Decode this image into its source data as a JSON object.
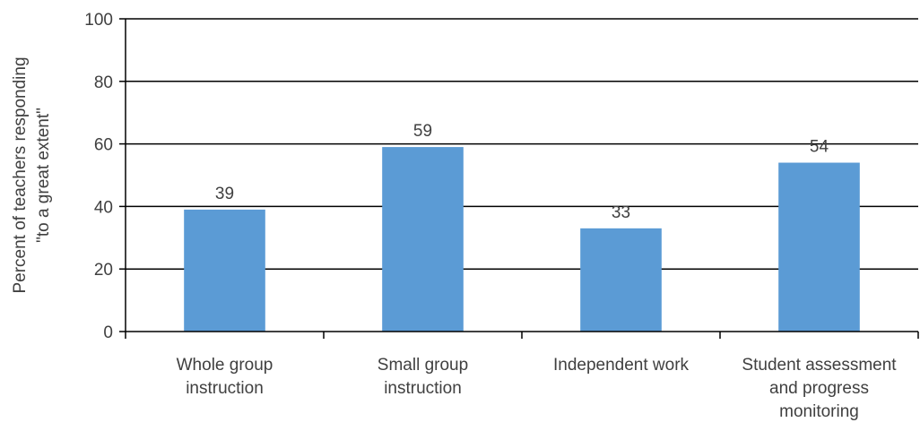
{
  "chart_data": {
    "type": "bar",
    "categories": [
      [
        "Whole group",
        "instruction"
      ],
      [
        "Small group",
        "instruction"
      ],
      [
        "Independent work"
      ],
      [
        "Student assessment",
        "and progress",
        "monitoring"
      ]
    ],
    "values": [
      39,
      59,
      33,
      54
    ],
    "data_labels": [
      "39",
      "59",
      "33",
      "54"
    ],
    "ylabel": [
      "Percent of teachers responding",
      "\"to a great extent\""
    ],
    "xlabel": "",
    "title": "",
    "ylim": [
      0,
      100
    ],
    "yticks": [
      "0",
      "20",
      "40",
      "60",
      "80",
      "100"
    ],
    "grid": true,
    "bar_color": "#5b9bd5",
    "grid_color": "#000000",
    "text_color": "#404040"
  }
}
